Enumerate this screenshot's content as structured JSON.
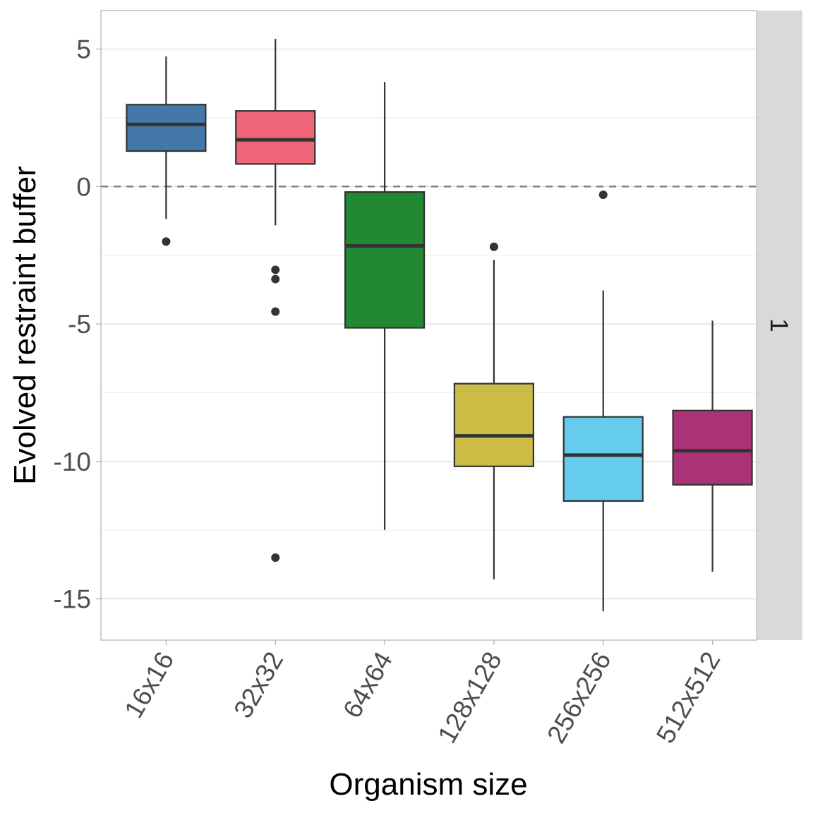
{
  "chart_data": {
    "type": "boxplot",
    "title": "",
    "xlabel": "Organism size",
    "ylabel": "Evolved restraint buffer",
    "facet_label": "1",
    "ylim": [
      -16.5,
      6.4
    ],
    "yticks": [
      5,
      0,
      -5,
      -10,
      -15
    ],
    "ytick_labels": [
      "5",
      "0",
      "-5",
      "-10",
      "-15"
    ],
    "minor_gridlines": [
      2.5,
      -2.5,
      -7.5,
      -12.5
    ],
    "reference_line": {
      "y": 0,
      "style": "dashed",
      "color": "#7f7f7f"
    },
    "grid": true,
    "legend": "none",
    "categories": [
      "16x16",
      "32x32",
      "64x64",
      "128x128",
      "256x256",
      "512x512"
    ],
    "series": [
      {
        "name": "16x16",
        "color": "#4477AA",
        "whisker_low": -1.18,
        "q1": 1.29,
        "median": 2.26,
        "q3": 2.98,
        "whisker_high": 4.73,
        "outliers": [
          -2.0
        ]
      },
      {
        "name": "32x32",
        "color": "#EE6677",
        "whisker_low": -1.41,
        "q1": 0.82,
        "median": 1.7,
        "q3": 2.75,
        "whisker_high": 5.37,
        "outliers": [
          -3.03,
          -3.37,
          -4.55,
          -13.5
        ]
      },
      {
        "name": "64x64",
        "color": "#228833",
        "whisker_low": -12.49,
        "q1": -5.14,
        "median": -2.16,
        "q3": -0.2,
        "whisker_high": 3.8,
        "outliers": []
      },
      {
        "name": "128x128",
        "color": "#CCBB44",
        "whisker_low": -14.29,
        "q1": -10.18,
        "median": -9.07,
        "q3": -7.17,
        "whisker_high": -2.67,
        "outliers": [
          -2.19
        ]
      },
      {
        "name": "256x256",
        "color": "#66CCEE",
        "whisker_low": -15.45,
        "q1": -11.44,
        "median": -9.77,
        "q3": -8.38,
        "whisker_high": -3.78,
        "outliers": [
          -0.3
        ]
      },
      {
        "name": "512x512",
        "color": "#AA3377",
        "whisker_low": -14.01,
        "q1": -10.85,
        "median": -9.61,
        "q3": -8.15,
        "whisker_high": -4.88,
        "outliers": []
      }
    ]
  }
}
